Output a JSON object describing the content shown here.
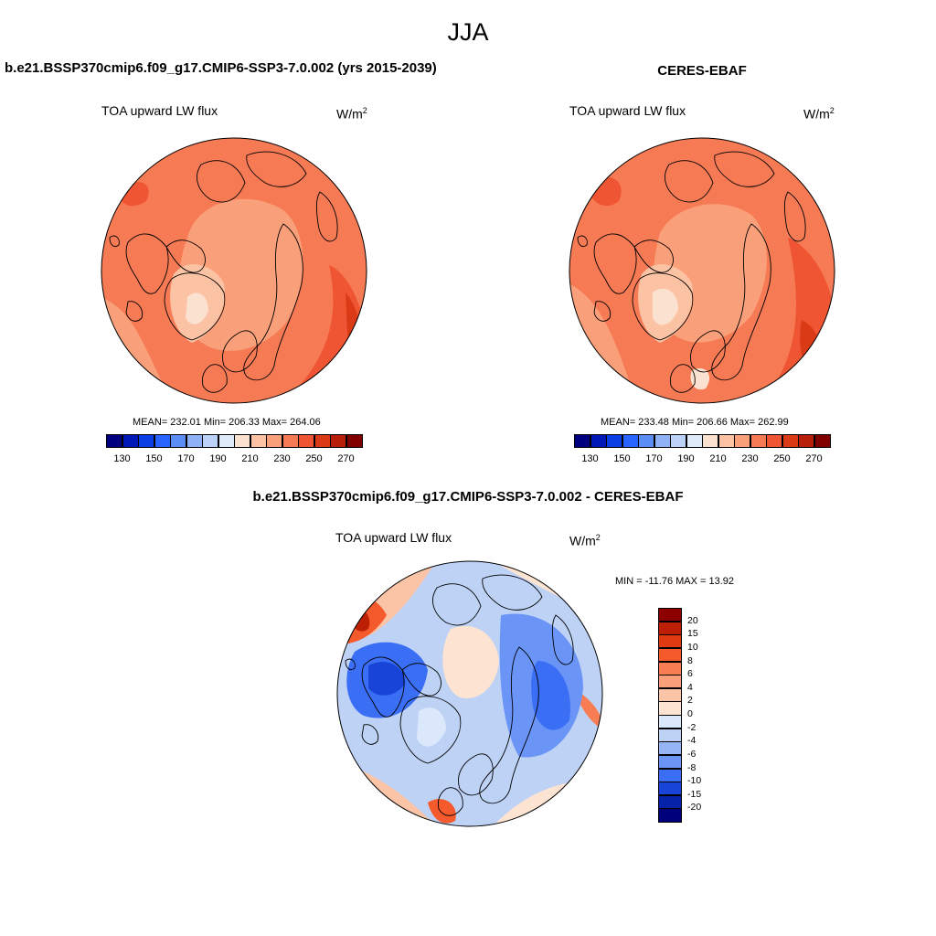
{
  "figure": {
    "season": "JJA",
    "case_title": "b.e21.BSSP370cmip6.f09_g17.CMIP6-SSP3-7.0.002 (yrs 2015-2039)",
    "obs_title": "CERES-EBAF",
    "diff_title": "b.e21.BSSP370cmip6.f09_g17.CMIP6-SSP3-7.0.002 - CERES-EBAF"
  },
  "panels": {
    "model": {
      "variable": "TOA upward LW flux",
      "units": "W/m",
      "units_sup": "2",
      "stats": "MEAN= 232.01  Min= 206.33  Max= 264.06"
    },
    "obs": {
      "variable": "TOA upward LW flux",
      "units": "W/m",
      "units_sup": "2",
      "stats": "MEAN= 233.48  Min= 206.66  Max= 262.99"
    },
    "diff": {
      "variable": "TOA upward LW flux",
      "units": "W/m",
      "units_sup": "2",
      "stats": "MIN = -11.76 MAX =  13.92"
    }
  },
  "colorbars": {
    "abs_labels": [
      "130",
      "150",
      "170",
      "190",
      "210",
      "230",
      "250",
      "270"
    ],
    "abs_colors": [
      "#00007e",
      "#0018b8",
      "#0c3ee6",
      "#2864ff",
      "#5b8ef5",
      "#8fb1f5",
      "#bcd2f6",
      "#e0ebfa",
      "#fbe1cf",
      "#fbc2a4",
      "#f9a07a",
      "#f67b54",
      "#ef5532",
      "#db3a17",
      "#b81f0b",
      "#800000"
    ],
    "diff_labels": [
      "20",
      "15",
      "10",
      "8",
      "6",
      "4",
      "2",
      "0",
      "-2",
      "-4",
      "-6",
      "-8",
      "-10",
      "-15",
      "-20"
    ],
    "diff_colors": [
      "#8c0000",
      "#bd1f05",
      "#e03a12",
      "#f55a2c",
      "#f87d52",
      "#f9a07a",
      "#fbc4a6",
      "#fde4d2",
      "#dbe7fa",
      "#bed2f6",
      "#95b5f7",
      "#6a95f6",
      "#3a6ef5",
      "#1845d8",
      "#0622a8",
      "#00007a"
    ]
  },
  "chart_data": [
    {
      "type": "heatmap",
      "title": "TOA upward LW flux",
      "subtitle": "b.e21.BSSP370cmip6.f09_g17.CMIP6-SSP3-7.0.002 (yrs 2015-2039)",
      "projection": "north polar stereographic",
      "units": "W/m2",
      "mean": 232.01,
      "min": 206.33,
      "max": 264.06,
      "levels": [
        130,
        140,
        150,
        160,
        170,
        180,
        190,
        200,
        210,
        220,
        230,
        240,
        250,
        260,
        270
      ],
      "colorbar_labels": [
        130,
        150,
        170,
        190,
        210,
        230,
        250,
        270
      ]
    },
    {
      "type": "heatmap",
      "title": "TOA upward LW flux",
      "subtitle": "CERES-EBAF",
      "projection": "north polar stereographic",
      "units": "W/m2",
      "mean": 233.48,
      "min": 206.66,
      "max": 262.99,
      "levels": [
        130,
        140,
        150,
        160,
        170,
        180,
        190,
        200,
        210,
        220,
        230,
        240,
        250,
        260,
        270
      ],
      "colorbar_labels": [
        130,
        150,
        170,
        190,
        210,
        230,
        250,
        270
      ]
    },
    {
      "type": "heatmap",
      "title": "TOA upward LW flux",
      "subtitle": "b.e21.BSSP370cmip6.f09_g17.CMIP6-SSP3-7.0.002 - CERES-EBAF",
      "projection": "north polar stereographic",
      "units": "W/m2",
      "min": -11.76,
      "max": 13.92,
      "levels": [
        20,
        15,
        10,
        8,
        6,
        4,
        2,
        0,
        -2,
        -4,
        -6,
        -8,
        -10,
        -15,
        -20
      ]
    }
  ]
}
